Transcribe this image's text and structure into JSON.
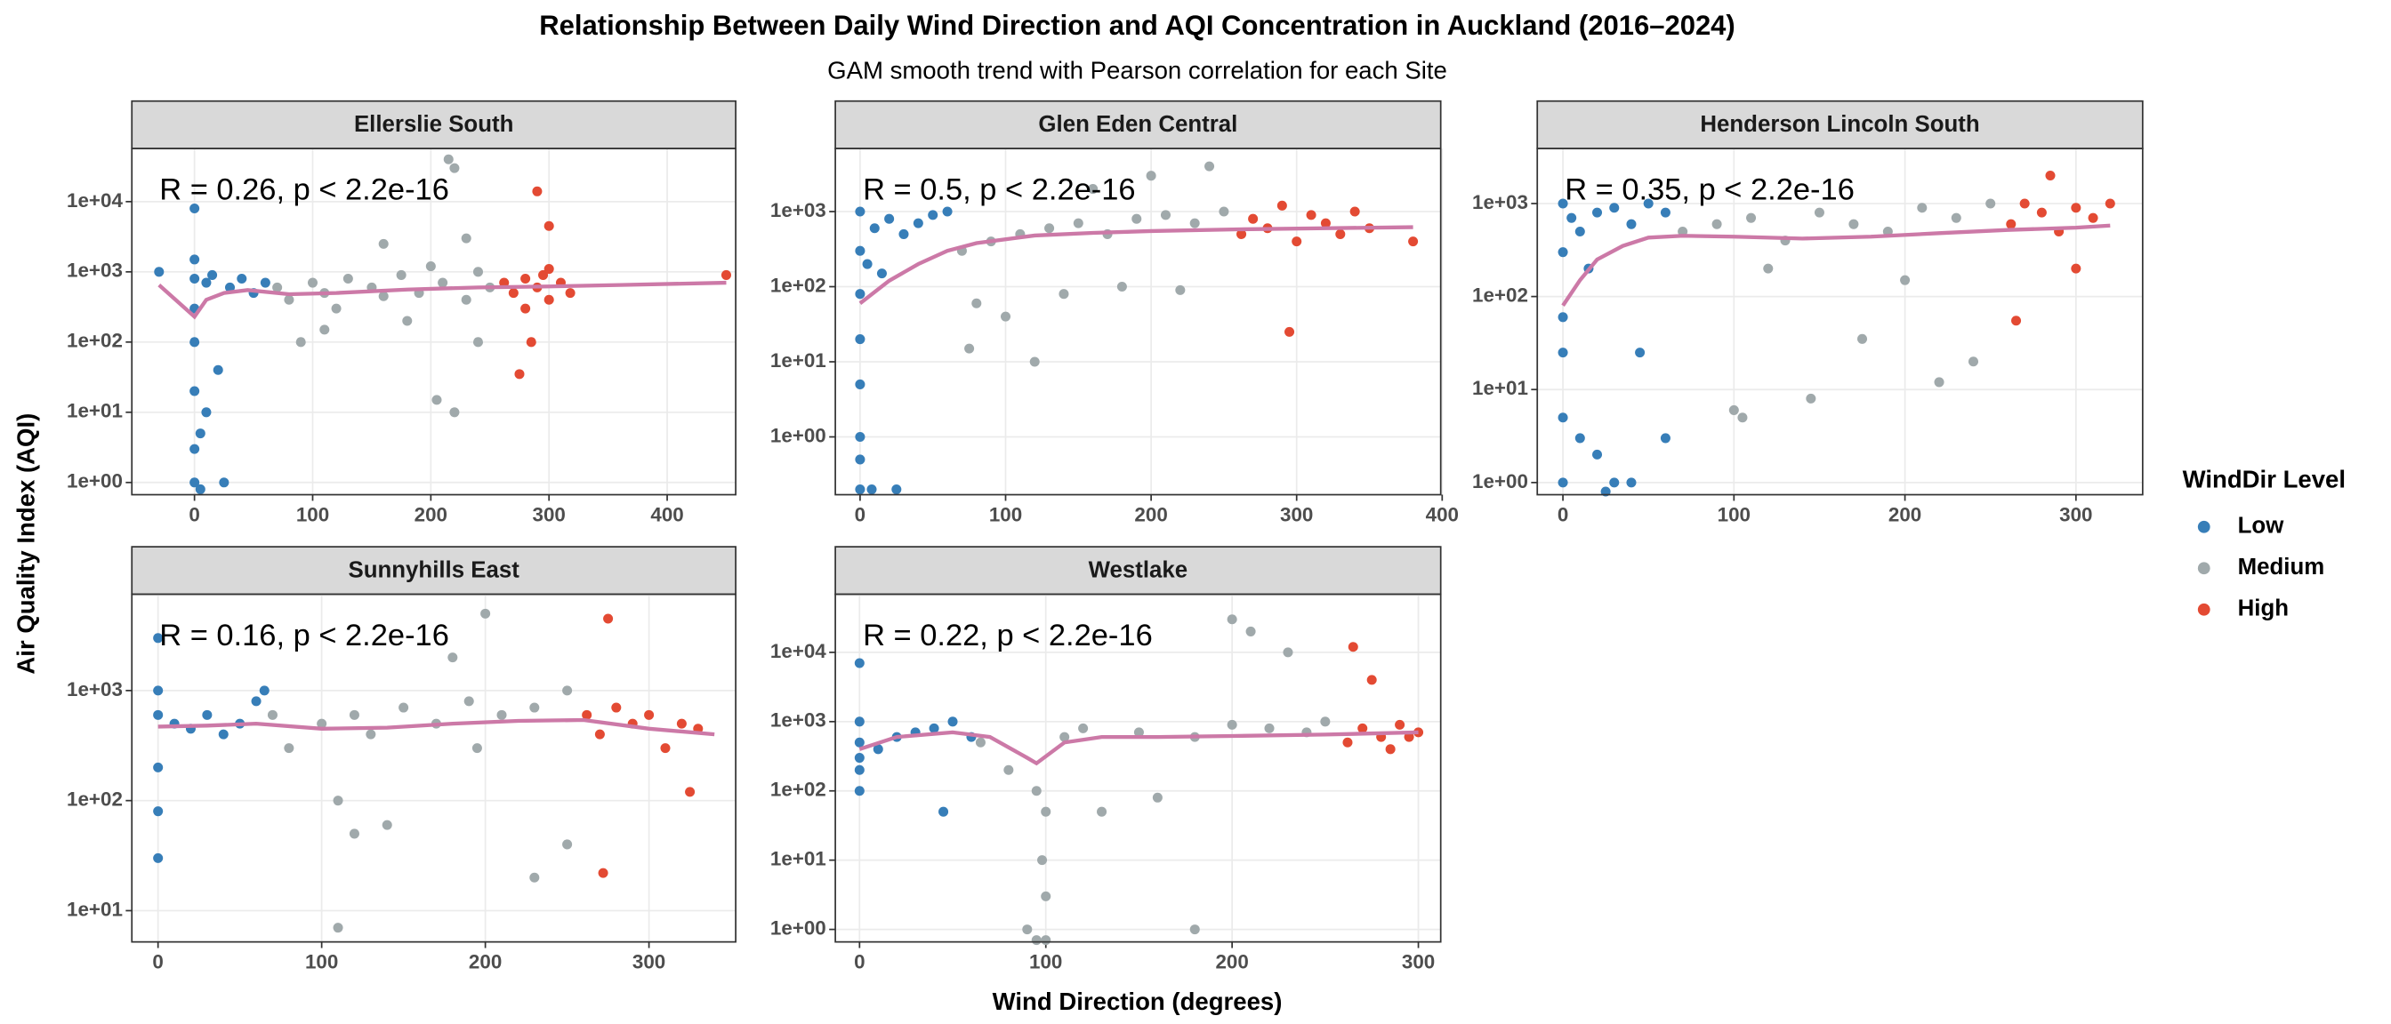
{
  "title": "Relationship Between Daily Wind Direction and  AQI  Concentration in Auckland (2016–2024)",
  "subtitle": "GAM smooth trend with Pearson correlation for each Site",
  "x_label": "Wind Direction (degrees)",
  "y_label": "Air Quality Index (AQI)",
  "legend_title": "WindDir Level",
  "chart_data": [
    {
      "type": "scatter",
      "title": "Ellerslie South",
      "annotation": "R = 0.26, p < 2.2e-16",
      "log_y": true,
      "grid": true,
      "xlim": [
        -53,
        458
      ],
      "xticks": [
        0,
        100,
        200,
        300,
        400
      ],
      "ylim": [
        0.67,
        57000
      ],
      "yticks": [
        {
          "value": 1,
          "label": "1e+00"
        },
        {
          "value": 10,
          "label": "1e+01"
        },
        {
          "value": 100,
          "label": "1e+02"
        },
        {
          "value": 1000,
          "label": "1e+03"
        },
        {
          "value": 10000,
          "label": "1e+04"
        }
      ],
      "series": [
        {
          "name": "Low",
          "color": "#377eb8",
          "x": [
            -30,
            0,
            0,
            0,
            0,
            0,
            0,
            5,
            10,
            15,
            20,
            25,
            30,
            40,
            50,
            60,
            0,
            10,
            0,
            5
          ],
          "y": [
            1000,
            1500,
            800,
            300,
            100,
            20,
            3,
            5,
            700,
            900,
            40,
            1,
            600,
            800,
            500,
            700,
            8000,
            10,
            1,
            0.8
          ]
        },
        {
          "name": "Medium",
          "color": "#a0a9ab",
          "x": [
            70,
            80,
            100,
            110,
            120,
            130,
            150,
            160,
            175,
            190,
            200,
            210,
            215,
            220,
            230,
            240,
            250,
            90,
            180,
            205,
            220,
            240,
            110,
            160,
            230
          ],
          "y": [
            600,
            400,
            700,
            500,
            300,
            800,
            600,
            450,
            900,
            500,
            1200,
            700,
            40000,
            30000,
            400,
            1000,
            600,
            100,
            200,
            15,
            10,
            100,
            150,
            2500,
            3000
          ]
        },
        {
          "name": "High",
          "color": "#e34a33",
          "x": [
            262,
            270,
            280,
            290,
            300,
            310,
            318,
            275,
            285,
            295,
            300,
            290,
            450,
            280,
            300
          ],
          "y": [
            700,
            500,
            800,
            600,
            400,
            700,
            500,
            35,
            100,
            900,
            4500,
            14000,
            900,
            300,
            1100
          ]
        }
      ],
      "smooth": {
        "color": "#cc79a7",
        "x": [
          -30,
          0,
          10,
          25,
          45,
          80,
          120,
          180,
          240,
          300,
          360,
          450
        ],
        "y": [
          650,
          230,
          400,
          500,
          550,
          480,
          500,
          560,
          600,
          620,
          650,
          700
        ]
      }
    },
    {
      "type": "scatter",
      "title": "Glen Eden Central",
      "annotation": "R = 0.5, p < 2.2e-16",
      "log_y": true,
      "grid": true,
      "xlim": [
        -17,
        399
      ],
      "xticks": [
        0,
        100,
        200,
        300,
        400
      ],
      "ylim": [
        0.17,
        6900
      ],
      "yticks": [
        {
          "value": 1,
          "label": "1e+00"
        },
        {
          "value": 10,
          "label": "1e+01"
        },
        {
          "value": 100,
          "label": "1e+02"
        },
        {
          "value": 1000,
          "label": "1e+03"
        }
      ],
      "series": [
        {
          "name": "Low",
          "color": "#377eb8",
          "x": [
            0,
            0,
            0,
            0,
            0,
            0,
            0,
            0,
            5,
            10,
            15,
            20,
            30,
            40,
            50,
            60,
            8,
            25
          ],
          "y": [
            1000,
            300,
            80,
            20,
            5,
            1,
            0.5,
            0.2,
            200,
            600,
            150,
            800,
            500,
            700,
            900,
            1000,
            0.2,
            0.2
          ]
        },
        {
          "name": "Medium",
          "color": "#a0a9ab",
          "x": [
            70,
            90,
            110,
            130,
            150,
            170,
            190,
            210,
            230,
            250,
            80,
            100,
            140,
            180,
            220,
            160,
            200,
            240,
            75,
            120
          ],
          "y": [
            300,
            400,
            500,
            600,
            700,
            500,
            800,
            900,
            700,
            1000,
            60,
            40,
            80,
            100,
            90,
            2000,
            3000,
            4000,
            15,
            10
          ]
        },
        {
          "name": "High",
          "color": "#e34a33",
          "x": [
            262,
            270,
            280,
            290,
            300,
            310,
            320,
            330,
            340,
            350,
            380,
            295
          ],
          "y": [
            500,
            800,
            600,
            1200,
            400,
            900,
            700,
            500,
            1000,
            600,
            400,
            25
          ]
        }
      ],
      "smooth": {
        "color": "#cc79a7",
        "x": [
          0,
          20,
          40,
          60,
          80,
          120,
          160,
          200,
          260,
          320,
          380
        ],
        "y": [
          60,
          120,
          200,
          300,
          380,
          480,
          520,
          550,
          580,
          600,
          620
        ]
      }
    },
    {
      "type": "scatter",
      "title": "Henderson Lincoln South",
      "annotation": "R = 0.35, p < 2.2e-16",
      "log_y": true,
      "grid": true,
      "xlim": [
        -15,
        339
      ],
      "xticks": [
        0,
        100,
        200,
        300
      ],
      "ylim": [
        0.74,
        3900
      ],
      "yticks": [
        {
          "value": 1,
          "label": "1e+00"
        },
        {
          "value": 10,
          "label": "1e+01"
        },
        {
          "value": 100,
          "label": "1e+02"
        },
        {
          "value": 1000,
          "label": "1e+03"
        }
      ],
      "series": [
        {
          "name": "Low",
          "color": "#377eb8",
          "x": [
            0,
            0,
            0,
            0,
            0,
            5,
            10,
            15,
            20,
            30,
            40,
            50,
            60,
            0,
            10,
            20,
            30,
            40,
            25,
            45,
            60
          ],
          "y": [
            1000,
            300,
            60,
            25,
            5,
            700,
            500,
            200,
            800,
            900,
            600,
            1000,
            800,
            1,
            3,
            2,
            1,
            1,
            0.8,
            25,
            3
          ]
        },
        {
          "name": "Medium",
          "color": "#a0a9ab",
          "x": [
            70,
            90,
            110,
            130,
            150,
            170,
            190,
            210,
            230,
            250,
            100,
            105,
            145,
            175,
            220,
            240,
            200,
            120
          ],
          "y": [
            500,
            600,
            700,
            400,
            800,
            600,
            500,
            900,
            700,
            1000,
            6,
            5,
            8,
            35,
            12,
            20,
            150,
            200
          ]
        },
        {
          "name": "High",
          "color": "#e34a33",
          "x": [
            262,
            270,
            280,
            290,
            300,
            310,
            320,
            265,
            300,
            285
          ],
          "y": [
            600,
            1000,
            800,
            500,
            900,
            700,
            1000,
            55,
            200,
            2000
          ]
        }
      ],
      "smooth": {
        "color": "#cc79a7",
        "x": [
          0,
          10,
          20,
          35,
          50,
          70,
          100,
          140,
          180,
          220,
          260,
          300,
          320
        ],
        "y": [
          80,
          150,
          250,
          350,
          430,
          450,
          440,
          420,
          440,
          480,
          520,
          550,
          580
        ]
      }
    },
    {
      "type": "scatter",
      "title": "Sunnyhills East",
      "annotation": "R = 0.16, p < 2.2e-16",
      "log_y": true,
      "grid": true,
      "xlim": [
        -16,
        353
      ],
      "xticks": [
        0,
        100,
        200,
        300
      ],
      "ylim": [
        5.2,
        7500
      ],
      "yticks": [
        {
          "value": 10,
          "label": "1e+01"
        },
        {
          "value": 100,
          "label": "1e+02"
        },
        {
          "value": 1000,
          "label": "1e+03"
        }
      ],
      "series": [
        {
          "name": "Low",
          "color": "#377eb8",
          "x": [
            0,
            0,
            0,
            0,
            0,
            0,
            10,
            20,
            30,
            40,
            50,
            60,
            65
          ],
          "y": [
            3000,
            1000,
            600,
            200,
            80,
            30,
            500,
            450,
            600,
            400,
            500,
            800,
            1000
          ]
        },
        {
          "name": "Medium",
          "color": "#a0a9ab",
          "x": [
            70,
            80,
            100,
            110,
            120,
            130,
            150,
            170,
            190,
            210,
            230,
            250,
            110,
            120,
            140,
            200,
            230,
            250,
            180,
            195
          ],
          "y": [
            600,
            300,
            500,
            7,
            600,
            400,
            700,
            500,
            800,
            600,
            700,
            1000,
            100,
            50,
            60,
            5000,
            20,
            40,
            2000,
            300
          ]
        },
        {
          "name": "High",
          "color": "#e34a33",
          "x": [
            262,
            270,
            280,
            290,
            300,
            310,
            320,
            330,
            275,
            272,
            325
          ],
          "y": [
            600,
            400,
            700,
            500,
            600,
            300,
            500,
            450,
            4500,
            22,
            120
          ]
        }
      ],
      "smooth": {
        "color": "#cc79a7",
        "x": [
          0,
          30,
          60,
          100,
          140,
          180,
          220,
          260,
          300,
          340
        ],
        "y": [
          470,
          480,
          500,
          450,
          460,
          500,
          530,
          540,
          450,
          400
        ]
      }
    },
    {
      "type": "scatter",
      "title": "Westlake",
      "annotation": "R = 0.22, p < 2.2e-16",
      "log_y": true,
      "grid": true,
      "xlim": [
        -13,
        312
      ],
      "xticks": [
        0,
        100,
        200,
        300
      ],
      "ylim": [
        0.66,
        69000
      ],
      "yticks": [
        {
          "value": 1,
          "label": "1e+00"
        },
        {
          "value": 10,
          "label": "1e+01"
        },
        {
          "value": 100,
          "label": "1e+02"
        },
        {
          "value": 1000,
          "label": "1e+03"
        },
        {
          "value": 10000,
          "label": "1e+04"
        }
      ],
      "series": [
        {
          "name": "Low",
          "color": "#377eb8",
          "x": [
            0,
            0,
            0,
            0,
            0,
            0,
            10,
            20,
            30,
            40,
            50,
            60,
            45
          ],
          "y": [
            7000,
            1000,
            500,
            200,
            100,
            300,
            400,
            600,
            700,
            800,
            1000,
            600,
            50
          ]
        },
        {
          "name": "Medium",
          "color": "#a0a9ab",
          "x": [
            65,
            80,
            90,
            95,
            98,
            100,
            110,
            120,
            150,
            180,
            200,
            220,
            240,
            250,
            95,
            100,
            100,
            180,
            200,
            210,
            230,
            130,
            160
          ],
          "y": [
            500,
            200,
            1,
            0.7,
            10,
            50,
            600,
            800,
            700,
            600,
            900,
            800,
            700,
            1000,
            100,
            3,
            0.7,
            1,
            30000,
            20000,
            10000,
            50,
            80
          ]
        },
        {
          "name": "High",
          "color": "#e34a33",
          "x": [
            262,
            270,
            280,
            290,
            300,
            265,
            275,
            285,
            295
          ],
          "y": [
            500,
            800,
            600,
            900,
            700,
            12000,
            4000,
            400,
            600
          ]
        }
      ],
      "smooth": {
        "color": "#cc79a7",
        "x": [
          0,
          20,
          50,
          70,
          90,
          95,
          110,
          130,
          160,
          200,
          250,
          300
        ],
        "y": [
          400,
          600,
          700,
          600,
          300,
          250,
          500,
          600,
          600,
          620,
          650,
          700
        ]
      }
    }
  ]
}
